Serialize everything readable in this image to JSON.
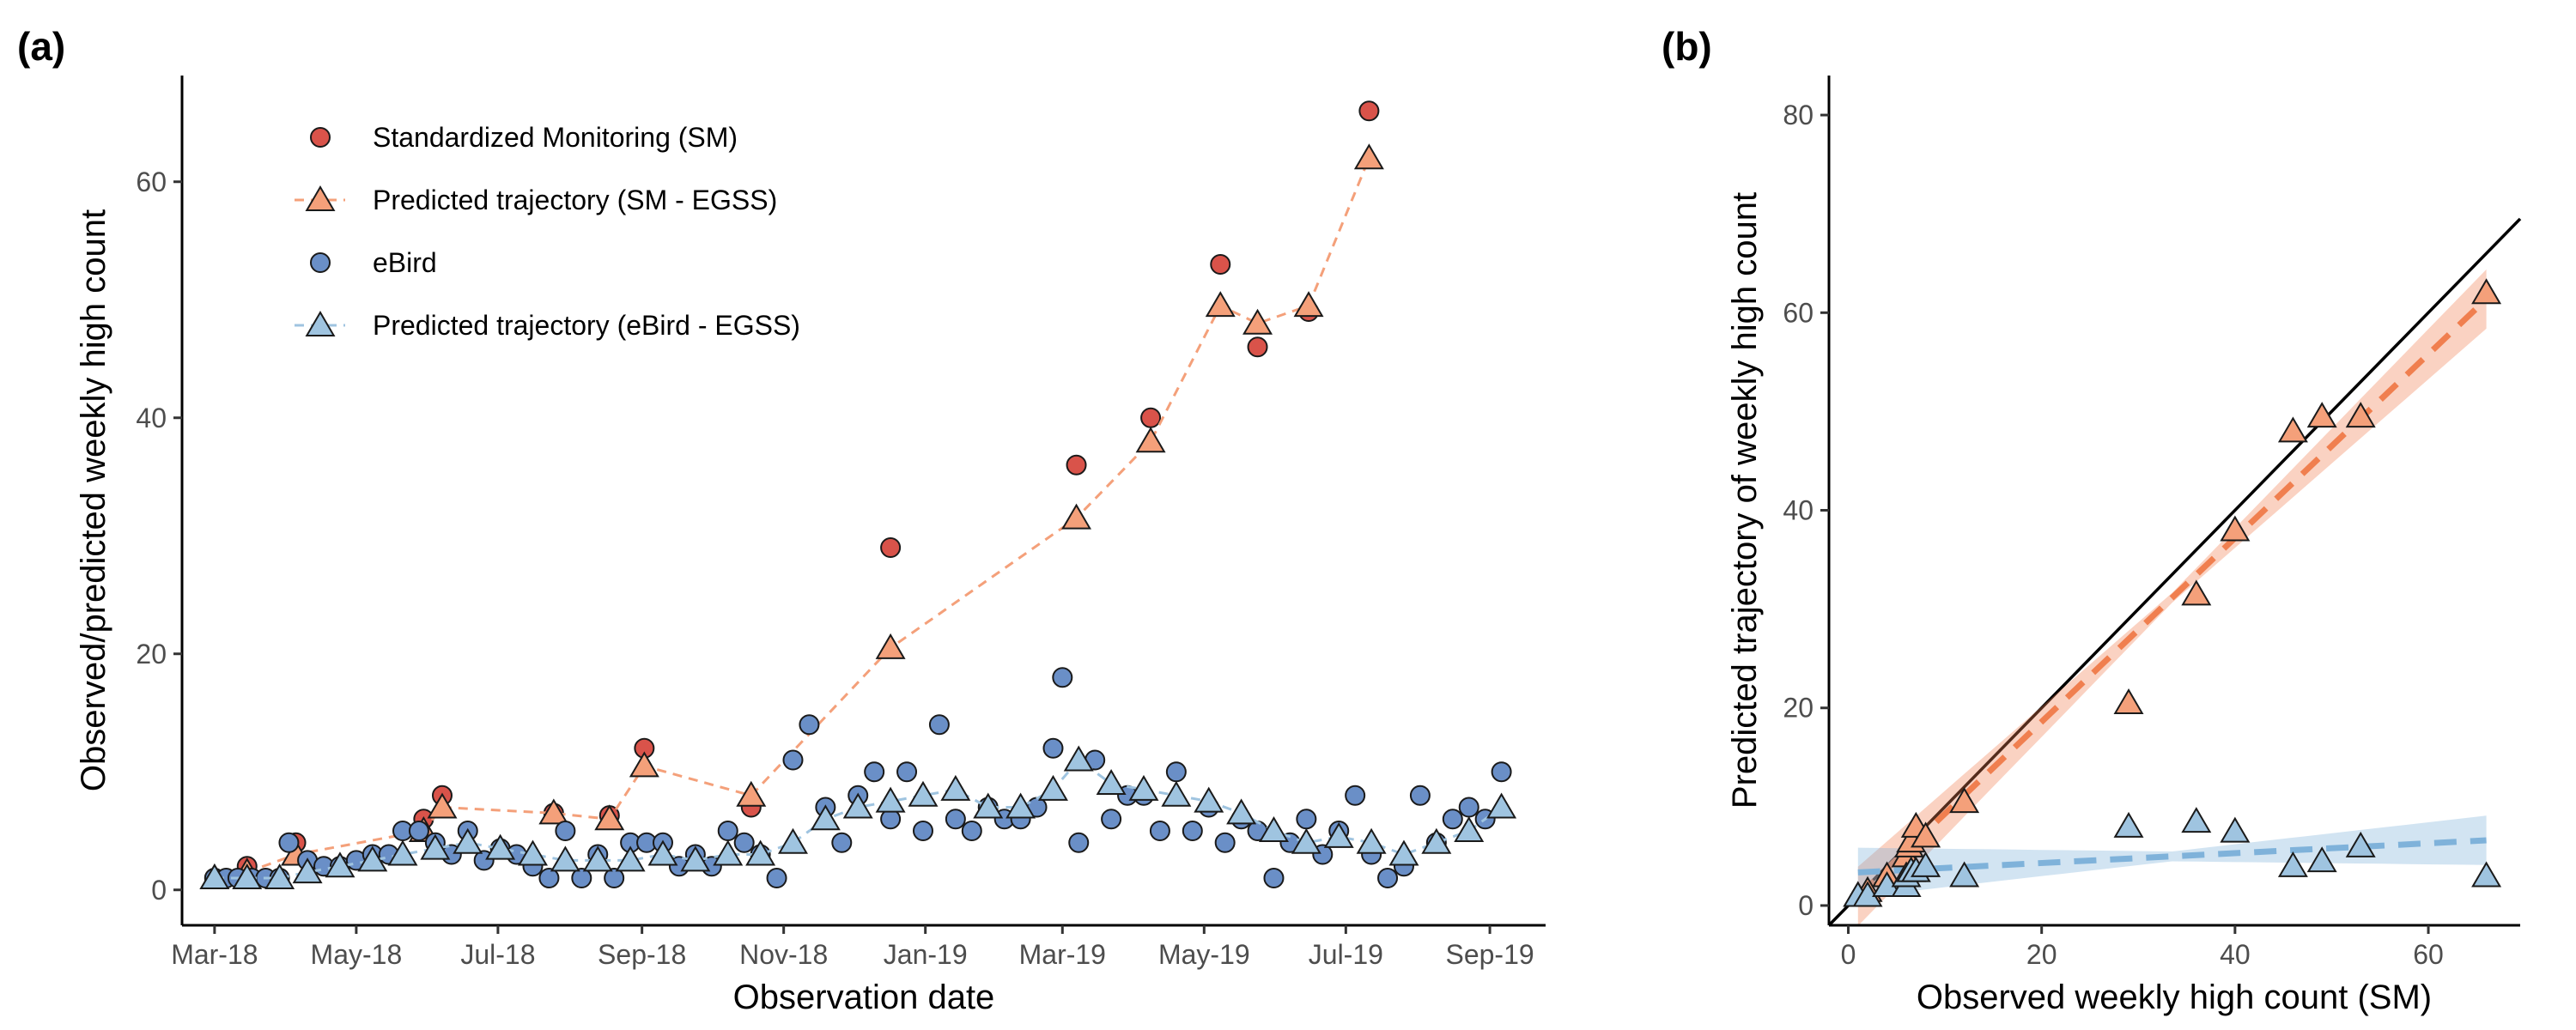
{
  "chart_data": [
    {
      "panel": "(a)",
      "type": "scatter",
      "xlabel": "Observation date",
      "ylabel": "Observed/predicted weekly high count",
      "xlim": [
        "2018-02-15",
        "2019-09-25"
      ],
      "ylim": [
        -3,
        69
      ],
      "xticks": [
        {
          "date": "2018-03-01",
          "label": "Mar-18"
        },
        {
          "date": "2018-05-01",
          "label": "May-18"
        },
        {
          "date": "2018-07-01",
          "label": "Jul-18"
        },
        {
          "date": "2018-09-01",
          "label": "Sep-18"
        },
        {
          "date": "2018-11-01",
          "label": "Nov-18"
        },
        {
          "date": "2019-01-01",
          "label": "Jan-19"
        },
        {
          "date": "2019-03-01",
          "label": "Mar-19"
        },
        {
          "date": "2019-05-01",
          "label": "May-19"
        },
        {
          "date": "2019-07-01",
          "label": "Jul-19"
        },
        {
          "date": "2019-09-01",
          "label": "Sep-19"
        }
      ],
      "yticks": [
        0,
        20,
        40,
        60
      ],
      "grid": false,
      "legend_position": "top-left",
      "legend": [
        {
          "label": "Standardized Monitoring (SM)",
          "marker": "circle",
          "color": "#D9534A"
        },
        {
          "label": "Predicted trajectory (SM - EGSS)",
          "marker": "triangle",
          "line": "dashed",
          "color": "#F4A07A"
        },
        {
          "label": "eBird",
          "marker": "circle",
          "color": "#6A8FC7"
        },
        {
          "label": "Predicted trajectory (eBird - EGSS)",
          "marker": "triangle",
          "line": "dashed",
          "color": "#9FC4E0"
        }
      ],
      "series": [
        {
          "name": "Standardized Monitoring (SM)",
          "marker": "circle",
          "color": "#D9534A",
          "points": [
            {
              "x": "2018-03-01",
              "y": 1
            },
            {
              "x": "2018-03-15",
              "y": 2
            },
            {
              "x": "2018-04-05",
              "y": 4
            },
            {
              "x": "2018-05-30",
              "y": 6
            },
            {
              "x": "2018-06-07",
              "y": 8
            },
            {
              "x": "2018-07-25",
              "y": 6.5
            },
            {
              "x": "2018-08-18",
              "y": 6.3
            },
            {
              "x": "2018-09-02",
              "y": 12
            },
            {
              "x": "2018-10-18",
              "y": 7
            },
            {
              "x": "2018-12-17",
              "y": 29
            },
            {
              "x": "2019-03-07",
              "y": 36
            },
            {
              "x": "2019-04-08",
              "y": 40
            },
            {
              "x": "2019-05-08",
              "y": 53
            },
            {
              "x": "2019-05-24",
              "y": 46
            },
            {
              "x": "2019-06-15",
              "y": 49
            },
            {
              "x": "2019-07-11",
              "y": 66
            }
          ]
        },
        {
          "name": "Predicted trajectory (SM - EGSS)",
          "marker": "triangle",
          "line": "dashed",
          "color": "#F4A07A",
          "points": [
            {
              "x": "2018-03-01",
              "y": 1
            },
            {
              "x": "2018-03-15",
              "y": 1.5
            },
            {
              "x": "2018-04-05",
              "y": 3
            },
            {
              "x": "2018-05-30",
              "y": 5
            },
            {
              "x": "2018-06-07",
              "y": 7
            },
            {
              "x": "2018-07-25",
              "y": 6.5
            },
            {
              "x": "2018-08-18",
              "y": 6
            },
            {
              "x": "2018-09-02",
              "y": 10.5
            },
            {
              "x": "2018-10-18",
              "y": 8
            },
            {
              "x": "2018-12-17",
              "y": 20.5
            },
            {
              "x": "2019-03-07",
              "y": 31.5
            },
            {
              "x": "2019-04-08",
              "y": 38
            },
            {
              "x": "2019-05-08",
              "y": 49.5
            },
            {
              "x": "2019-05-24",
              "y": 48
            },
            {
              "x": "2019-06-15",
              "y": 49.5
            },
            {
              "x": "2019-07-11",
              "y": 62
            }
          ]
        },
        {
          "name": "eBird",
          "marker": "circle",
          "color": "#6A8FC7",
          "points": [
            {
              "x": "2018-03-01",
              "y": 1
            },
            {
              "x": "2018-03-06",
              "y": 1
            },
            {
              "x": "2018-03-11",
              "y": 1
            },
            {
              "x": "2018-03-17",
              "y": 1
            },
            {
              "x": "2018-03-23",
              "y": 1
            },
            {
              "x": "2018-03-29",
              "y": 1
            },
            {
              "x": "2018-04-02",
              "y": 4
            },
            {
              "x": "2018-04-10",
              "y": 2.5
            },
            {
              "x": "2018-04-17",
              "y": 2
            },
            {
              "x": "2018-04-24",
              "y": 2
            },
            {
              "x": "2018-05-01",
              "y": 2.5
            },
            {
              "x": "2018-05-08",
              "y": 3
            },
            {
              "x": "2018-05-15",
              "y": 3
            },
            {
              "x": "2018-05-21",
              "y": 5
            },
            {
              "x": "2018-05-28",
              "y": 5
            },
            {
              "x": "2018-06-04",
              "y": 4
            },
            {
              "x": "2018-06-11",
              "y": 3
            },
            {
              "x": "2018-06-18",
              "y": 5
            },
            {
              "x": "2018-06-25",
              "y": 2.5
            },
            {
              "x": "2018-07-02",
              "y": 3.5
            },
            {
              "x": "2018-07-09",
              "y": 3
            },
            {
              "x": "2018-07-16",
              "y": 2
            },
            {
              "x": "2018-07-23",
              "y": 1
            },
            {
              "x": "2018-07-30",
              "y": 5
            },
            {
              "x": "2018-08-06",
              "y": 1
            },
            {
              "x": "2018-08-13",
              "y": 3
            },
            {
              "x": "2018-08-20",
              "y": 1
            },
            {
              "x": "2018-08-27",
              "y": 4
            },
            {
              "x": "2018-09-03",
              "y": 4
            },
            {
              "x": "2018-09-10",
              "y": 4
            },
            {
              "x": "2018-09-17",
              "y": 2
            },
            {
              "x": "2018-09-24",
              "y": 3
            },
            {
              "x": "2018-10-01",
              "y": 2
            },
            {
              "x": "2018-10-08",
              "y": 5
            },
            {
              "x": "2018-10-15",
              "y": 4
            },
            {
              "x": "2018-10-22",
              "y": 3
            },
            {
              "x": "2018-10-29",
              "y": 1
            },
            {
              "x": "2018-11-05",
              "y": 11
            },
            {
              "x": "2018-11-12",
              "y": 14
            },
            {
              "x": "2018-11-19",
              "y": 7
            },
            {
              "x": "2018-11-26",
              "y": 4
            },
            {
              "x": "2018-12-03",
              "y": 8
            },
            {
              "x": "2018-12-10",
              "y": 10
            },
            {
              "x": "2018-12-17",
              "y": 6
            },
            {
              "x": "2018-12-24",
              "y": 10
            },
            {
              "x": "2018-12-31",
              "y": 5
            },
            {
              "x": "2019-01-07",
              "y": 14
            },
            {
              "x": "2019-01-14",
              "y": 6
            },
            {
              "x": "2019-01-21",
              "y": 5
            },
            {
              "x": "2019-01-28",
              "y": 7
            },
            {
              "x": "2019-02-04",
              "y": 6
            },
            {
              "x": "2019-02-11",
              "y": 6
            },
            {
              "x": "2019-02-18",
              "y": 7
            },
            {
              "x": "2019-02-25",
              "y": 12
            },
            {
              "x": "2019-03-01",
              "y": 18
            },
            {
              "x": "2019-03-08",
              "y": 4
            },
            {
              "x": "2019-03-15",
              "y": 11
            },
            {
              "x": "2019-03-22",
              "y": 6
            },
            {
              "x": "2019-03-29",
              "y": 8
            },
            {
              "x": "2019-04-05",
              "y": 8
            },
            {
              "x": "2019-04-12",
              "y": 5
            },
            {
              "x": "2019-04-19",
              "y": 10
            },
            {
              "x": "2019-04-26",
              "y": 5
            },
            {
              "x": "2019-05-03",
              "y": 7
            },
            {
              "x": "2019-05-10",
              "y": 4
            },
            {
              "x": "2019-05-17",
              "y": 6
            },
            {
              "x": "2019-05-24",
              "y": 5
            },
            {
              "x": "2019-05-31",
              "y": 1
            },
            {
              "x": "2019-06-07",
              "y": 4
            },
            {
              "x": "2019-06-14",
              "y": 6
            },
            {
              "x": "2019-06-21",
              "y": 3
            },
            {
              "x": "2019-06-28",
              "y": 5
            },
            {
              "x": "2019-07-05",
              "y": 8
            },
            {
              "x": "2019-07-12",
              "y": 3
            },
            {
              "x": "2019-07-19",
              "y": 1
            },
            {
              "x": "2019-07-26",
              "y": 2
            },
            {
              "x": "2019-08-02",
              "y": 8
            },
            {
              "x": "2019-08-09",
              "y": 4
            },
            {
              "x": "2019-08-16",
              "y": 6
            },
            {
              "x": "2019-08-23",
              "y": 7
            },
            {
              "x": "2019-08-30",
              "y": 6
            },
            {
              "x": "2019-09-06",
              "y": 10
            }
          ]
        },
        {
          "name": "Predicted trajectory (eBird - EGSS)",
          "marker": "triangle",
          "line": "dashed",
          "color": "#9FC4E0",
          "points": [
            {
              "x": "2018-03-01",
              "y": 1
            },
            {
              "x": "2018-03-15",
              "y": 1
            },
            {
              "x": "2018-03-29",
              "y": 1
            },
            {
              "x": "2018-04-10",
              "y": 1.5
            },
            {
              "x": "2018-04-24",
              "y": 2
            },
            {
              "x": "2018-05-08",
              "y": 2.5
            },
            {
              "x": "2018-05-21",
              "y": 3
            },
            {
              "x": "2018-06-04",
              "y": 3.5
            },
            {
              "x": "2018-06-18",
              "y": 4
            },
            {
              "x": "2018-07-02",
              "y": 3.5
            },
            {
              "x": "2018-07-16",
              "y": 3
            },
            {
              "x": "2018-07-30",
              "y": 2.5
            },
            {
              "x": "2018-08-13",
              "y": 2.5
            },
            {
              "x": "2018-08-27",
              "y": 2.5
            },
            {
              "x": "2018-09-10",
              "y": 3
            },
            {
              "x": "2018-09-24",
              "y": 2.5
            },
            {
              "x": "2018-10-08",
              "y": 3
            },
            {
              "x": "2018-10-22",
              "y": 3
            },
            {
              "x": "2018-11-05",
              "y": 4
            },
            {
              "x": "2018-11-19",
              "y": 6
            },
            {
              "x": "2018-12-03",
              "y": 7
            },
            {
              "x": "2018-12-17",
              "y": 7.5
            },
            {
              "x": "2018-12-31",
              "y": 8
            },
            {
              "x": "2019-01-14",
              "y": 8.5
            },
            {
              "x": "2019-01-28",
              "y": 7
            },
            {
              "x": "2019-02-11",
              "y": 7
            },
            {
              "x": "2019-02-25",
              "y": 8.5
            },
            {
              "x": "2019-03-08",
              "y": 11
            },
            {
              "x": "2019-03-22",
              "y": 9
            },
            {
              "x": "2019-04-05",
              "y": 8.5
            },
            {
              "x": "2019-04-19",
              "y": 8
            },
            {
              "x": "2019-05-03",
              "y": 7.5
            },
            {
              "x": "2019-05-17",
              "y": 6.5
            },
            {
              "x": "2019-05-31",
              "y": 5
            },
            {
              "x": "2019-06-14",
              "y": 4
            },
            {
              "x": "2019-06-28",
              "y": 4.5
            },
            {
              "x": "2019-07-12",
              "y": 4
            },
            {
              "x": "2019-07-26",
              "y": 3
            },
            {
              "x": "2019-08-09",
              "y": 4
            },
            {
              "x": "2019-08-23",
              "y": 5
            },
            {
              "x": "2019-09-06",
              "y": 7
            }
          ]
        }
      ]
    },
    {
      "panel": "(b)",
      "type": "scatter",
      "xlabel": "Observed weekly high count (SM)",
      "ylabel": "Predicted trajectory of weekly high count",
      "xlim": [
        -2,
        69.5
      ],
      "ylim": [
        -2,
        84
      ],
      "xticks": [
        0,
        20,
        40,
        60
      ],
      "yticks": [
        0,
        20,
        40,
        60,
        80
      ],
      "grid": false,
      "reference_line": {
        "name": "1:1 line",
        "slope": 1,
        "intercept": 0,
        "color": "#000000"
      },
      "series": [
        {
          "name": "SM - EGSS",
          "marker": "triangle",
          "color": "#F4A07A",
          "points": [
            {
              "x": 1,
              "y": 1
            },
            {
              "x": 2,
              "y": 1.5
            },
            {
              "x": 4,
              "y": 3
            },
            {
              "x": 6,
              "y": 5
            },
            {
              "x": 6.3,
              "y": 6
            },
            {
              "x": 6.5,
              "y": 6.5
            },
            {
              "x": 7,
              "y": 8
            },
            {
              "x": 8,
              "y": 7
            },
            {
              "x": 12,
              "y": 10.5
            },
            {
              "x": 29,
              "y": 20.5
            },
            {
              "x": 36,
              "y": 31.5
            },
            {
              "x": 40,
              "y": 38
            },
            {
              "x": 46,
              "y": 48
            },
            {
              "x": 49,
              "y": 49.5
            },
            {
              "x": 53,
              "y": 49.5
            },
            {
              "x": 66,
              "y": 62
            }
          ],
          "fit": {
            "slope": 0.93,
            "intercept": 0,
            "ci_halfwidth_at_max": 3,
            "color": "#F07F4F"
          }
        },
        {
          "name": "eBird - EGSS",
          "marker": "triangle",
          "color": "#9FC4E0",
          "points": [
            {
              "x": 1,
              "y": 1
            },
            {
              "x": 2,
              "y": 1
            },
            {
              "x": 4,
              "y": 2
            },
            {
              "x": 6,
              "y": 2
            },
            {
              "x": 6,
              "y": 3
            },
            {
              "x": 6.5,
              "y": 3.5
            },
            {
              "x": 7,
              "y": 3.5
            },
            {
              "x": 8,
              "y": 4
            },
            {
              "x": 12,
              "y": 3
            },
            {
              "x": 29,
              "y": 8
            },
            {
              "x": 36,
              "y": 8.5
            },
            {
              "x": 40,
              "y": 7.5
            },
            {
              "x": 46,
              "y": 4
            },
            {
              "x": 49,
              "y": 4.5
            },
            {
              "x": 53,
              "y": 6
            },
            {
              "x": 66,
              "y": 3
            }
          ],
          "fit": {
            "slope": 0.05,
            "intercept": 3.3,
            "ci_halfwidth_at_max": 2.5,
            "color": "#7FB2DA"
          }
        }
      ]
    }
  ]
}
